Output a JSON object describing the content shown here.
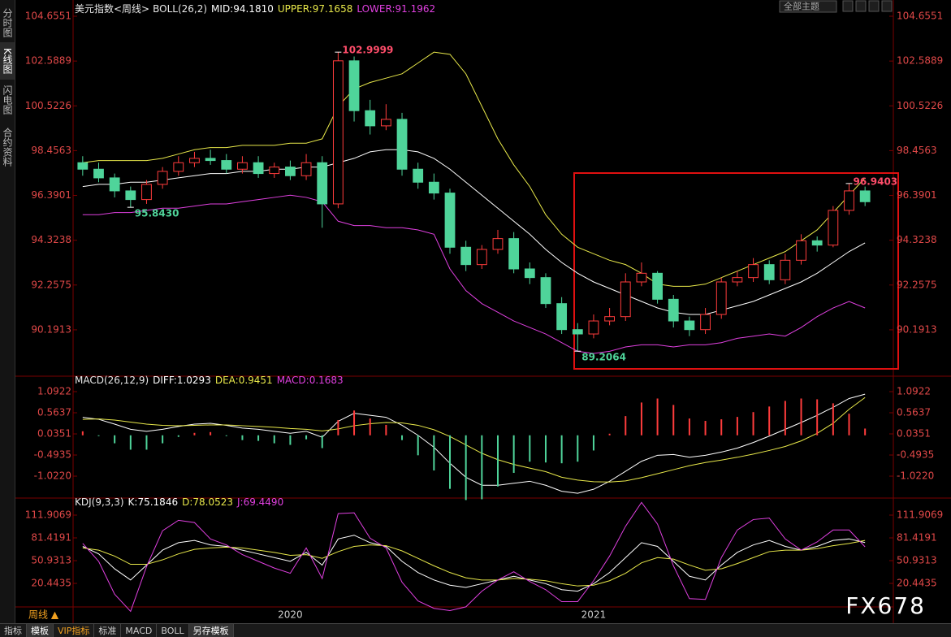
{
  "ui": {
    "sidebar": [
      "分时图",
      "K线图",
      "闪电图",
      "合约资料"
    ],
    "period": "周线 ▲",
    "theme": "全部主题",
    "tabs": [
      "指标",
      "模板",
      "VIP指标",
      "标准",
      "MACD",
      "BOLL",
      "另存模板"
    ],
    "watermark": "FX678"
  },
  "chart_data": [
    {
      "type": "candlestick",
      "title": "美元指数<周线>",
      "indicator": "BOLL(26,2)",
      "categories": [
        null,
        null,
        null,
        null,
        null,
        null,
        null,
        null,
        null,
        null,
        null,
        null,
        null,
        "2020",
        null,
        null,
        null,
        null,
        null,
        null,
        null,
        null,
        null,
        null,
        null,
        null,
        null,
        null,
        null,
        null,
        null,
        null,
        "2021",
        null,
        null,
        null,
        null,
        null,
        null,
        null,
        null,
        null,
        null,
        null,
        null,
        null,
        null,
        null,
        null,
        null
      ],
      "open": [
        97.9,
        97.6,
        97.2,
        96.6,
        96.2,
        96.9,
        97.5,
        97.9,
        98.1,
        98.0,
        97.6,
        97.9,
        97.4,
        97.7,
        97.3,
        97.9,
        96.0,
        102.6,
        100.3,
        99.6,
        99.9,
        97.6,
        97.0,
        96.5,
        94.0,
        93.2,
        93.9,
        94.4,
        93.0,
        92.6,
        91.4,
        90.2,
        90.0,
        90.6,
        90.8,
        92.4,
        92.8,
        91.6,
        90.6,
        90.2,
        90.9,
        92.4,
        92.6,
        93.2,
        92.5,
        93.4,
        94.3,
        94.1,
        95.7,
        96.6
      ],
      "high": [
        98.2,
        97.9,
        97.4,
        96.8,
        97.1,
        97.7,
        98.2,
        98.4,
        98.5,
        98.3,
        98.2,
        98.2,
        97.9,
        98.0,
        98.3,
        98.2,
        102.9999,
        102.8,
        100.8,
        100.6,
        100.2,
        97.9,
        97.4,
        96.7,
        94.3,
        94.1,
        94.8,
        94.7,
        93.3,
        92.8,
        91.7,
        90.5,
        90.9,
        91.2,
        92.8,
        93.3,
        92.9,
        91.8,
        90.8,
        91.2,
        92.6,
        92.9,
        93.5,
        93.4,
        93.7,
        94.6,
        94.5,
        95.9,
        96.9403,
        96.8
      ],
      "low": [
        97.3,
        97.0,
        96.3,
        95.843,
        96.0,
        96.7,
        97.3,
        97.7,
        97.8,
        97.4,
        97.4,
        97.2,
        97.2,
        97.1,
        97.1,
        94.9,
        95.8,
        99.8,
        99.2,
        99.4,
        97.3,
        96.7,
        96.2,
        93.7,
        92.9,
        93.0,
        93.7,
        92.8,
        92.3,
        91.2,
        90.0,
        89.2064,
        89.8,
        90.4,
        90.6,
        92.2,
        91.4,
        90.3,
        89.9,
        90.0,
        90.7,
        92.2,
        92.4,
        92.3,
        92.3,
        93.2,
        93.8,
        94.0,
        95.5,
        95.9
      ],
      "close": [
        97.6,
        97.2,
        96.6,
        96.2,
        96.9,
        97.5,
        97.9,
        98.1,
        98.0,
        97.6,
        97.9,
        97.4,
        97.7,
        97.3,
        97.9,
        96.0,
        102.6,
        100.3,
        99.6,
        99.9,
        97.6,
        97.0,
        96.5,
        94.0,
        93.2,
        93.9,
        94.4,
        93.0,
        92.6,
        91.4,
        90.2,
        90.0,
        90.6,
        90.8,
        92.4,
        92.8,
        91.6,
        90.6,
        90.2,
        90.9,
        92.4,
        92.6,
        93.2,
        92.5,
        93.4,
        94.3,
        94.1,
        95.7,
        96.6,
        96.1
      ],
      "up_color": "#ff3c3c",
      "down_color": "#4fd49a",
      "series": [
        {
          "label": "MID:94.1810",
          "color": "#ffffff",
          "values": [
            96.8,
            96.9,
            96.9,
            97.0,
            97.0,
            97.1,
            97.2,
            97.3,
            97.4,
            97.4,
            97.5,
            97.5,
            97.6,
            97.6,
            97.7,
            97.7,
            97.9,
            98.1,
            98.4,
            98.5,
            98.5,
            98.4,
            98.1,
            97.6,
            97.0,
            96.4,
            95.8,
            95.2,
            94.6,
            93.9,
            93.3,
            92.8,
            92.4,
            92.1,
            91.8,
            91.5,
            91.2,
            91.0,
            90.9,
            90.9,
            91.1,
            91.3,
            91.5,
            91.8,
            92.1,
            92.4,
            92.8,
            93.3,
            93.8,
            94.2
          ]
        },
        {
          "label": "UPPER:97.1658",
          "color": "#e8e84a",
          "values": [
            97.9,
            98.0,
            98.0,
            98.0,
            98.0,
            98.1,
            98.3,
            98.5,
            98.6,
            98.6,
            98.7,
            98.7,
            98.7,
            98.8,
            98.8,
            99.0,
            100.5,
            101.3,
            101.6,
            101.8,
            102.0,
            102.5,
            103.0,
            102.9,
            102.0,
            100.5,
            99.0,
            97.8,
            96.8,
            95.5,
            94.6,
            94.0,
            93.7,
            93.4,
            93.2,
            92.8,
            92.3,
            92.2,
            92.2,
            92.3,
            92.6,
            92.9,
            93.2,
            93.5,
            93.8,
            94.3,
            94.8,
            95.6,
            96.4,
            97.2
          ]
        },
        {
          "label": "LOWER:91.1962",
          "color": "#e040e0",
          "values": [
            95.5,
            95.5,
            95.6,
            95.6,
            95.7,
            95.8,
            95.8,
            95.9,
            96.0,
            96.0,
            96.1,
            96.2,
            96.3,
            96.4,
            96.3,
            96.1,
            95.2,
            95.0,
            95.0,
            94.9,
            94.9,
            94.8,
            94.6,
            93.0,
            92.0,
            91.4,
            91.0,
            90.6,
            90.3,
            90.0,
            89.6,
            89.2,
            89.1,
            89.2,
            89.4,
            89.5,
            89.5,
            89.4,
            89.5,
            89.5,
            89.6,
            89.8,
            89.9,
            90.0,
            89.9,
            90.3,
            90.8,
            91.2,
            91.5,
            91.2
          ]
        }
      ],
      "annotations": [
        {
          "value": 102.9999,
          "label": "102.9999",
          "color": "#ff4d6a"
        },
        {
          "value": 95.843,
          "label": "95.8430",
          "color": "#4fd49a"
        },
        {
          "value": 89.2064,
          "label": "89.2064",
          "color": "#4fd49a"
        },
        {
          "value": 96.9403,
          "label": "96.9403",
          "color": "#ff4d6a"
        }
      ],
      "ylim": [
        88.09,
        105.105
      ],
      "yticks": [
        90.1913,
        92.2575,
        94.3238,
        96.3901,
        98.4563,
        100.5226,
        102.5889,
        104.6551
      ],
      "tick_color": "#e04848"
    },
    {
      "type": "line",
      "title": "MACD(26,12,9)",
      "series": [
        {
          "label": "DIFF:1.0293",
          "color": "#ffffff",
          "values": [
            0.45,
            0.4,
            0.28,
            0.15,
            0.1,
            0.15,
            0.22,
            0.28,
            0.3,
            0.25,
            0.18,
            0.15,
            0.1,
            0.05,
            0.1,
            -0.05,
            0.35,
            0.55,
            0.5,
            0.45,
            0.25,
            0.0,
            -0.3,
            -0.7,
            -1.05,
            -1.25,
            -1.25,
            -1.2,
            -1.15,
            -1.25,
            -1.4,
            -1.45,
            -1.35,
            -1.15,
            -0.9,
            -0.65,
            -0.5,
            -0.48,
            -0.55,
            -0.5,
            -0.42,
            -0.32,
            -0.18,
            -0.02,
            0.15,
            0.32,
            0.5,
            0.7,
            0.92,
            1.0293
          ]
        },
        {
          "label": "DEA:0.9451",
          "color": "#e8e84a",
          "values": [
            0.4,
            0.41,
            0.38,
            0.33,
            0.28,
            0.25,
            0.24,
            0.25,
            0.26,
            0.26,
            0.24,
            0.22,
            0.2,
            0.17,
            0.15,
            0.11,
            0.16,
            0.24,
            0.29,
            0.32,
            0.31,
            0.25,
            0.14,
            -0.03,
            -0.24,
            -0.45,
            -0.61,
            -0.73,
            -0.82,
            -0.91,
            -1.05,
            -1.12,
            -1.16,
            -1.17,
            -1.14,
            -1.06,
            -0.96,
            -0.86,
            -0.76,
            -0.68,
            -0.62,
            -0.55,
            -0.47,
            -0.38,
            -0.28,
            -0.14,
            0.05,
            0.3,
            0.65,
            0.9451
          ]
        },
        {
          "label": "MACD:0.1683",
          "color": "#e040e0",
          "style": "histogram",
          "up_color": "#ff3c3c",
          "down_color": "#4fd49a",
          "values": [
            0.1,
            -0.02,
            -0.2,
            -0.36,
            -0.36,
            -0.2,
            -0.04,
            0.06,
            0.08,
            -0.02,
            -0.12,
            -0.14,
            -0.2,
            -0.24,
            -0.1,
            -0.32,
            0.38,
            0.62,
            0.42,
            0.26,
            -0.12,
            -0.5,
            -0.88,
            -1.34,
            -1.62,
            -1.6,
            -1.28,
            -0.94,
            -0.66,
            -0.68,
            -0.7,
            -0.66,
            -0.38,
            0.04,
            0.48,
            0.82,
            0.92,
            0.76,
            0.42,
            0.36,
            0.4,
            0.46,
            0.58,
            0.72,
            0.86,
            0.92,
            0.9,
            0.8,
            0.54,
            0.1683
          ]
        }
      ],
      "ylim": [
        -1.55,
        1.438
      ],
      "yticks": [
        {
          "value": -1.022,
          "label": "-1.0220"
        },
        -0.4935,
        0.0351,
        0.5637,
        1.0922
      ],
      "tick_color": "#e04848"
    },
    {
      "type": "line",
      "title": "KDJ(9,3,3)",
      "series": [
        {
          "label": "K:75.1846",
          "color": "#ffffff",
          "values": [
            70,
            60,
            40,
            25,
            45,
            65,
            75,
            78,
            72,
            70,
            65,
            60,
            55,
            50,
            62,
            45,
            80,
            85,
            75,
            70,
            50,
            35,
            25,
            18,
            15,
            20,
            25,
            30,
            25,
            20,
            12,
            10,
            20,
            35,
            55,
            75,
            70,
            50,
            30,
            25,
            45,
            62,
            72,
            78,
            70,
            65,
            70,
            78,
            80,
            75.1846
          ]
        },
        {
          "label": "D:78.0523",
          "color": "#e8e84a",
          "values": [
            68,
            65,
            57,
            46,
            46,
            52,
            60,
            66,
            68,
            69,
            68,
            65,
            62,
            58,
            59,
            54,
            63,
            70,
            72,
            71,
            64,
            54,
            44,
            35,
            28,
            25,
            25,
            27,
            26,
            24,
            20,
            17,
            18,
            24,
            34,
            48,
            55,
            53,
            45,
            38,
            40,
            47,
            55,
            63,
            65,
            65,
            67,
            71,
            74,
            78.0523
          ]
        },
        {
          "label": "J:69.4490",
          "color": "#e040e0",
          "values": [
            74,
            50,
            6,
            -17,
            43,
            91,
            105,
            102,
            80,
            72,
            59,
            50,
            41,
            34,
            68,
            27,
            114,
            115,
            81,
            68,
            22,
            -3,
            -13,
            -16,
            -11,
            10,
            25,
            36,
            23,
            12,
            -4,
            -4,
            24,
            57,
            97,
            129,
            100,
            44,
            0,
            -1,
            55,
            92,
            106,
            108,
            80,
            65,
            76,
            92,
            92,
            69.449
          ]
        }
      ],
      "ylim": [
        -30.7,
        132.6
      ],
      "yticks": [
        20.4435,
        50.9313,
        81.4191,
        111.9069
      ],
      "tick_color": "#e04848"
    }
  ]
}
